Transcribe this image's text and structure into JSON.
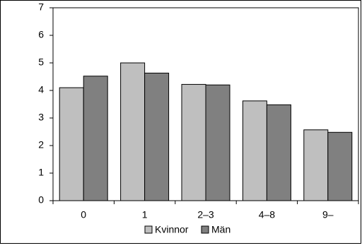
{
  "chart_data": {
    "type": "bar",
    "categories": [
      "0",
      "1",
      "2–3",
      "4–8",
      "9–"
    ],
    "series": [
      {
        "name": "Kvinnor",
        "color": "#bfbfbf",
        "values": [
          4.1,
          5.0,
          4.22,
          3.62,
          2.57
        ]
      },
      {
        "name": "Män",
        "color": "#808080",
        "values": [
          4.52,
          4.63,
          4.2,
          3.48,
          2.48
        ]
      }
    ],
    "ylim": [
      0,
      7
    ],
    "yticks": [
      0,
      1,
      2,
      3,
      4,
      5,
      6,
      7
    ],
    "grid": false,
    "legend": "bottom"
  }
}
